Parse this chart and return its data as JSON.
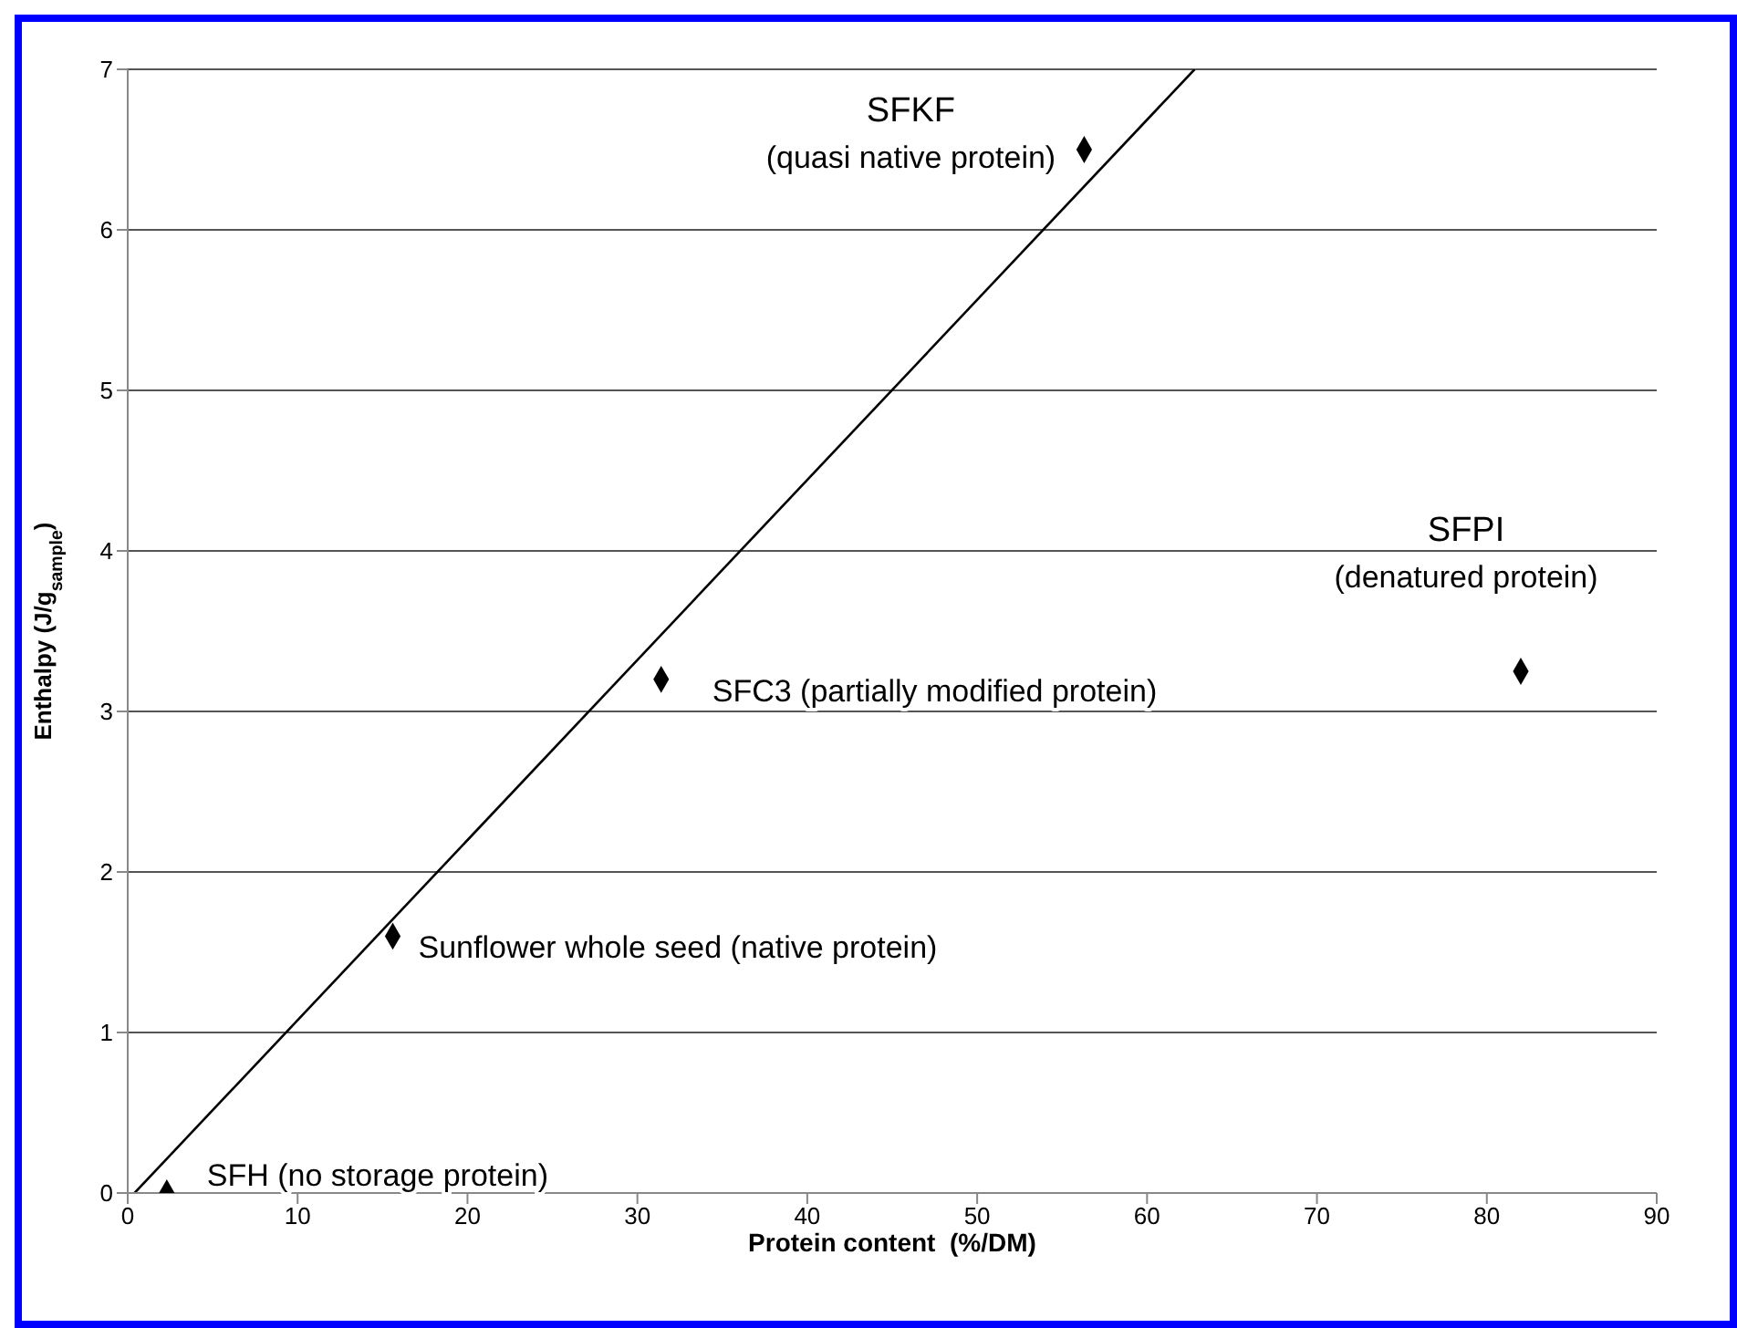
{
  "chart_data": {
    "type": "scatter",
    "xlabel": "Protein content  (%/DM)",
    "ylabel": "Enthalpy (J/g$_{sample}$)",
    "xlim": [
      0,
      90
    ],
    "xticks": [
      0,
      10,
      20,
      30,
      40,
      50,
      60,
      70,
      80,
      90
    ],
    "ylim": [
      0,
      7
    ],
    "yticks": [
      0,
      1,
      2,
      3,
      4,
      5,
      6,
      7
    ],
    "grid": "y",
    "marker": "diamond",
    "series": [
      {
        "color": "#000000",
        "x": [
          2.3,
          15.6,
          31.4,
          56.3,
          82
        ],
        "values": [
          0,
          1.6,
          3.2,
          6.5,
          3.25
        ]
      },
      {
        "type": "line",
        "color": "#000000",
        "marker": "none",
        "x": [
          0.4,
          62.8
        ],
        "values": [
          0,
          7
        ]
      }
    ],
    "annotations": [
      {
        "text": "SFH (no storage protein)",
        "x": 2.3,
        "y": 0
      },
      {
        "text": "Sunflower whole seed (native protein)",
        "x": 15.6,
        "y": 1.6
      },
      {
        "text": "SFC3 (partially modified protein)",
        "x": 31.4,
        "y": 3.2
      },
      {
        "text": "SFKF\n(quasi native protein)",
        "x": 56.3,
        "y": 6.5
      },
      {
        "text": "SFPI\n(denatured protein)",
        "x": 82,
        "y": 3.25
      }
    ]
  }
}
